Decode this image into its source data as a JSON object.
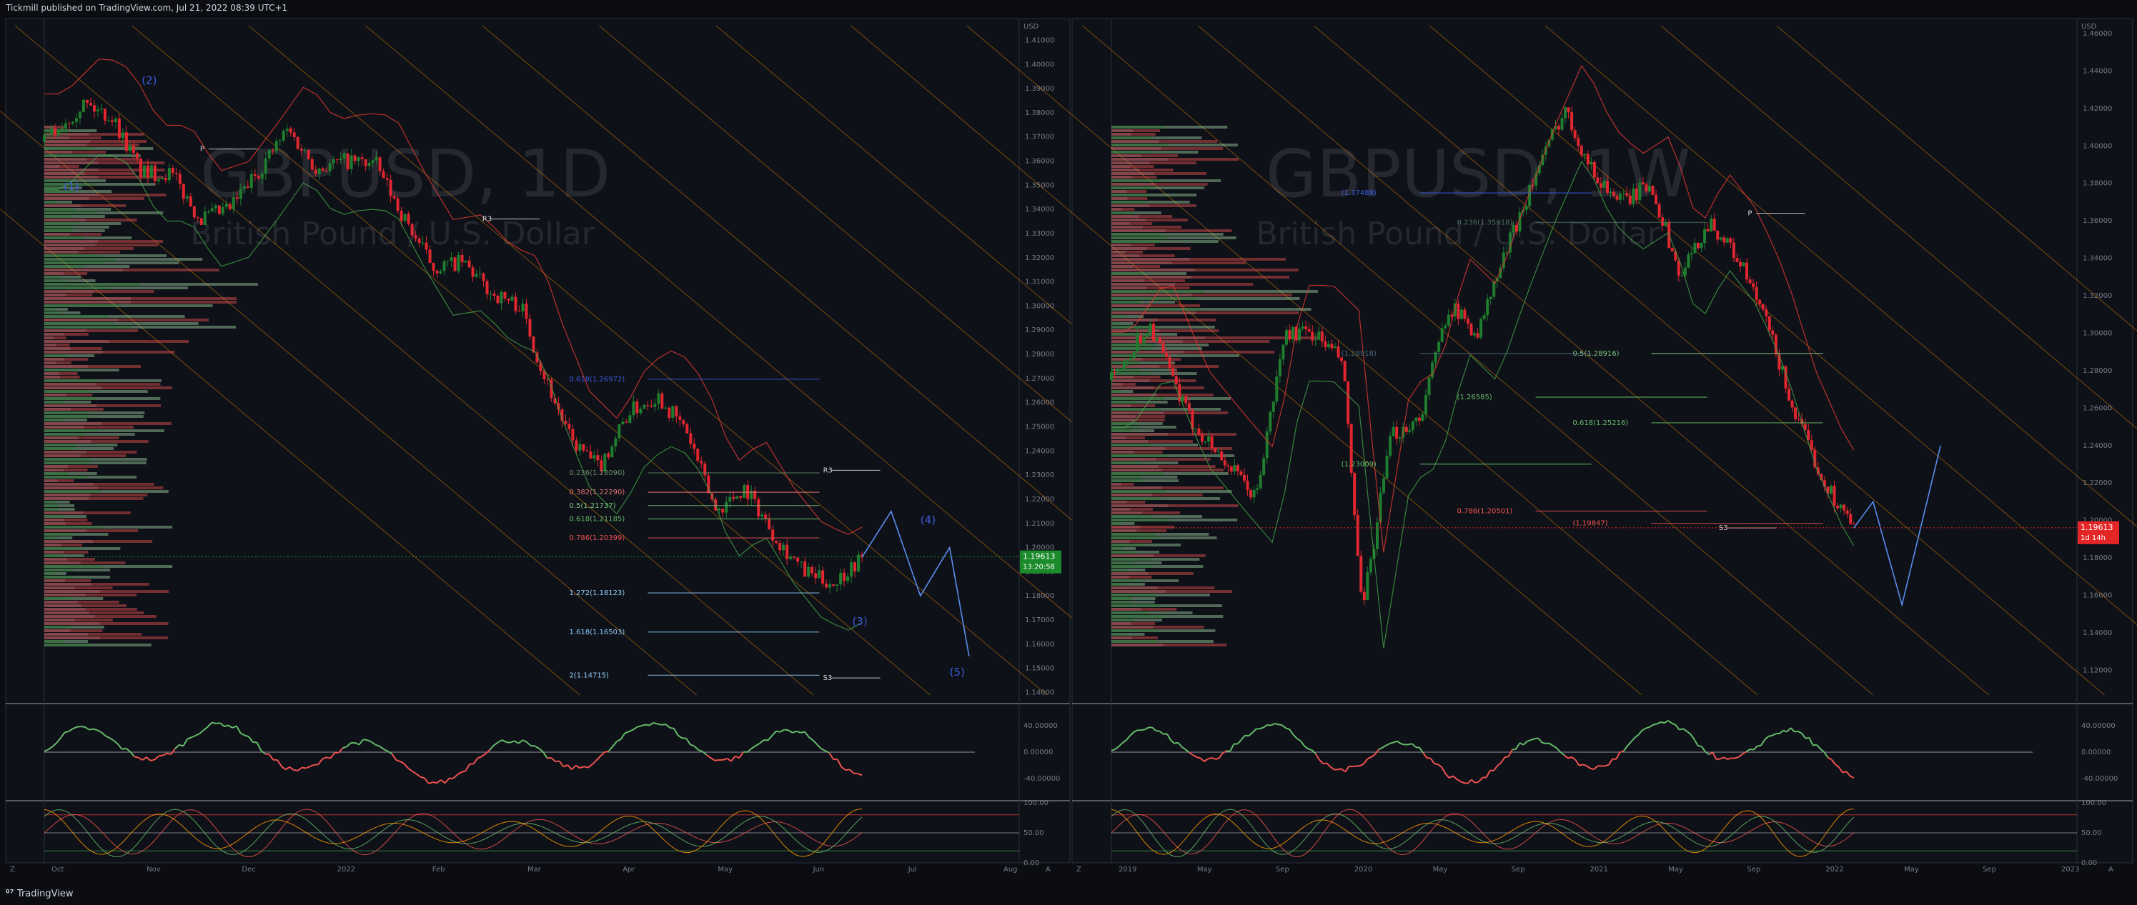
{
  "header": {
    "published_text": "Tickmill published on TradingView.com, Jul 21, 2022 08:39 UTC+1"
  },
  "footer": {
    "brand_text": "TradingView"
  },
  "colors": {
    "background": "#0b0d12",
    "bull_candle": "#1e7d2e",
    "bear_candle": "#e0262f",
    "elliott_label": "#3b5bdb",
    "fib_red": "#e53935",
    "fib_green": "#43a047",
    "channel_orange": "#ff9800",
    "price_badge_green": "#1b8a2a",
    "price_badge_red": "#e52626",
    "rsi_up": "#66bb6a",
    "rsi_down": "#ef5350"
  },
  "chart_data": [
    {
      "type": "candlestick",
      "symbol": "GBPUSD",
      "interval": "1D",
      "watermark_symbol": "GBPUSD, 1D",
      "watermark_name": "British Pound / U.S. Dollar",
      "currency": "USD",
      "x_tick_labels": [
        "Oct",
        "Nov",
        "Dec",
        "2022",
        "Feb",
        "Mar",
        "Apr",
        "May",
        "Jun",
        "Jul",
        "Aug"
      ],
      "y_tick_labels": [
        "1.41000",
        "1.40000",
        "1.39000",
        "1.38000",
        "1.37000",
        "1.36000",
        "1.35000",
        "1.34000",
        "1.33000",
        "1.32000",
        "1.31000",
        "1.30000",
        "1.29000",
        "1.28000",
        "1.27000",
        "1.26000",
        "1.25000",
        "1.24000",
        "1.23000",
        "1.22000",
        "1.21000",
        "1.20000",
        "1.19000",
        "1.18000",
        "1.17000",
        "1.16000",
        "1.15000",
        "1.14000"
      ],
      "ylim": [
        1.136,
        1.419
      ],
      "price_badge": {
        "price": "1.19613",
        "countdown": "13:20:58"
      },
      "close_path": [
        {
          "t": 0.0,
          "p": 1.368
        },
        {
          "t": 0.04,
          "p": 1.384
        },
        {
          "t": 0.07,
          "p": 1.378
        },
        {
          "t": 0.1,
          "p": 1.355
        },
        {
          "t": 0.13,
          "p": 1.355
        },
        {
          "t": 0.16,
          "p": 1.336
        },
        {
          "t": 0.19,
          "p": 1.34
        },
        {
          "t": 0.22,
          "p": 1.356
        },
        {
          "t": 0.25,
          "p": 1.373
        },
        {
          "t": 0.28,
          "p": 1.357
        },
        {
          "t": 0.31,
          "p": 1.36
        },
        {
          "t": 0.34,
          "p": 1.359
        },
        {
          "t": 0.37,
          "p": 1.336
        },
        {
          "t": 0.4,
          "p": 1.316
        },
        {
          "t": 0.43,
          "p": 1.318
        },
        {
          "t": 0.46,
          "p": 1.305
        },
        {
          "t": 0.49,
          "p": 1.3
        },
        {
          "t": 0.51,
          "p": 1.275
        },
        {
          "t": 0.54,
          "p": 1.245
        },
        {
          "t": 0.57,
          "p": 1.233
        },
        {
          "t": 0.6,
          "p": 1.256
        },
        {
          "t": 0.63,
          "p": 1.263
        },
        {
          "t": 0.66,
          "p": 1.248
        },
        {
          "t": 0.69,
          "p": 1.215
        },
        {
          "t": 0.72,
          "p": 1.225
        },
        {
          "t": 0.75,
          "p": 1.205
        },
        {
          "t": 0.78,
          "p": 1.19
        },
        {
          "t": 0.81,
          "p": 1.185
        },
        {
          "t": 0.84,
          "p": 1.196
        }
      ],
      "wave_labels": [
        {
          "label": "(1)",
          "t": 0.02,
          "p": 1.348
        },
        {
          "label": "(2)",
          "t": 0.1,
          "p": 1.392
        },
        {
          "label": "(3)",
          "t": 0.83,
          "p": 1.168
        },
        {
          "label": "(4)",
          "t": 0.9,
          "p": 1.21
        },
        {
          "label": "(5)",
          "t": 0.93,
          "p": 1.147
        }
      ],
      "fib_levels": [
        {
          "label": "0.618(1.26972)",
          "p": 1.26972,
          "color": "#3b5bdb"
        },
        {
          "label": "0.236(1.23090)",
          "p": 1.2309,
          "color": "#6a8f6a"
        },
        {
          "label": "0.382(1.22290)",
          "p": 1.2229,
          "color": "#e57373"
        },
        {
          "label": "0.5(1.21737)",
          "p": 1.21737,
          "color": "#81c784"
        },
        {
          "label": "0.618(1.21185)",
          "p": 1.21185,
          "color": "#66bb6a"
        },
        {
          "label": "0.786(1.20399)",
          "p": 1.20399,
          "color": "#ef5350"
        },
        {
          "label": "1.272(1.18123)",
          "p": 1.18123,
          "color": "#90caf9"
        },
        {
          "label": "1.618(1.16503)",
          "p": 1.16503,
          "color": "#90caf9"
        },
        {
          "label": "2(1.14715)",
          "p": 1.14715,
          "color": "#90caf9"
        }
      ],
      "pivot_labels": [
        {
          "label": "P",
          "p": 1.365
        },
        {
          "label": "R3",
          "p": 1.336
        },
        {
          "label": "R3",
          "p": 1.232
        },
        {
          "label": "S3",
          "p": 1.146
        }
      ],
      "rsi_ticks": [
        "40.00000",
        "0.00000",
        "-40.00000"
      ],
      "stoch_ticks": [
        "100.00",
        "50.00",
        "0.00"
      ]
    },
    {
      "type": "candlestick",
      "symbol": "GBPUSD",
      "interval": "1W",
      "watermark_symbol": "GBPUSD, 1W",
      "watermark_name": "British Pound / U.S. Dollar",
      "currency": "USD",
      "x_tick_labels": [
        "2019",
        "May",
        "Sep",
        "2020",
        "May",
        "Sep",
        "2021",
        "May",
        "Sep",
        "2022",
        "May",
        "Sep",
        "2023"
      ],
      "y_tick_labels": [
        "1.46000",
        "1.44000",
        "1.42000",
        "1.40000",
        "1.38000",
        "1.36000",
        "1.34000",
        "1.32000",
        "1.30000",
        "1.28000",
        "1.26000",
        "1.24000",
        "1.22000",
        "1.20000",
        "1.18000",
        "1.16000",
        "1.14000",
        "1.12000"
      ],
      "ylim": [
        1.103,
        1.468
      ],
      "price_badge": {
        "price": "1.19613",
        "countdown": "1d 14h"
      },
      "close_path": [
        {
          "t": 0.0,
          "p": 1.275
        },
        {
          "t": 0.04,
          "p": 1.305
        },
        {
          "t": 0.08,
          "p": 1.255
        },
        {
          "t": 0.12,
          "p": 1.23
        },
        {
          "t": 0.15,
          "p": 1.212
        },
        {
          "t": 0.18,
          "p": 1.3
        },
        {
          "t": 0.21,
          "p": 1.3
        },
        {
          "t": 0.24,
          "p": 1.285
        },
        {
          "t": 0.26,
          "p": 1.15
        },
        {
          "t": 0.29,
          "p": 1.245
        },
        {
          "t": 0.32,
          "p": 1.255
        },
        {
          "t": 0.35,
          "p": 1.315
        },
        {
          "t": 0.38,
          "p": 1.3
        },
        {
          "t": 0.41,
          "p": 1.345
        },
        {
          "t": 0.44,
          "p": 1.385
        },
        {
          "t": 0.47,
          "p": 1.42
        },
        {
          "t": 0.5,
          "p": 1.385
        },
        {
          "t": 0.53,
          "p": 1.37
        },
        {
          "t": 0.56,
          "p": 1.38
        },
        {
          "t": 0.59,
          "p": 1.33
        },
        {
          "t": 0.62,
          "p": 1.36
        },
        {
          "t": 0.65,
          "p": 1.34
        },
        {
          "t": 0.68,
          "p": 1.305
        },
        {
          "t": 0.71,
          "p": 1.255
        },
        {
          "t": 0.74,
          "p": 1.22
        },
        {
          "t": 0.77,
          "p": 1.196
        }
      ],
      "fib_levels": [
        {
          "label": "(1.37488)",
          "p": 1.37488,
          "color": "#3b5bdb"
        },
        {
          "label": "0.236(1.35918)",
          "p": 1.35918,
          "color": "#4a6a5a"
        },
        {
          "label": "0.5(1.28916)",
          "p": 1.28916,
          "color": "#81c784"
        },
        {
          "label": "(1.28918)",
          "p": 1.28918,
          "color": "#4a6a7a"
        },
        {
          "label": "(1.26585)",
          "p": 1.26585,
          "color": "#66bb6a"
        },
        {
          "label": "0.618(1.25216)",
          "p": 1.25216,
          "color": "#66bb6a"
        },
        {
          "label": "(1.23009)",
          "p": 1.23009,
          "color": "#66bb6a"
        },
        {
          "label": "0.786(1.20501)",
          "p": 1.20501,
          "color": "#ef5350"
        },
        {
          "label": "(1.19847)",
          "p": 1.19847,
          "color": "#ef5350"
        }
      ],
      "pivot_labels": [
        {
          "label": "P",
          "p": 1.364
        },
        {
          "label": "S3",
          "p": 1.196
        }
      ],
      "rsi_ticks": [
        "40.00000",
        "0.00000",
        "-40.00000"
      ],
      "stoch_ticks": [
        "100.00",
        "50.00",
        "0.00"
      ]
    }
  ]
}
